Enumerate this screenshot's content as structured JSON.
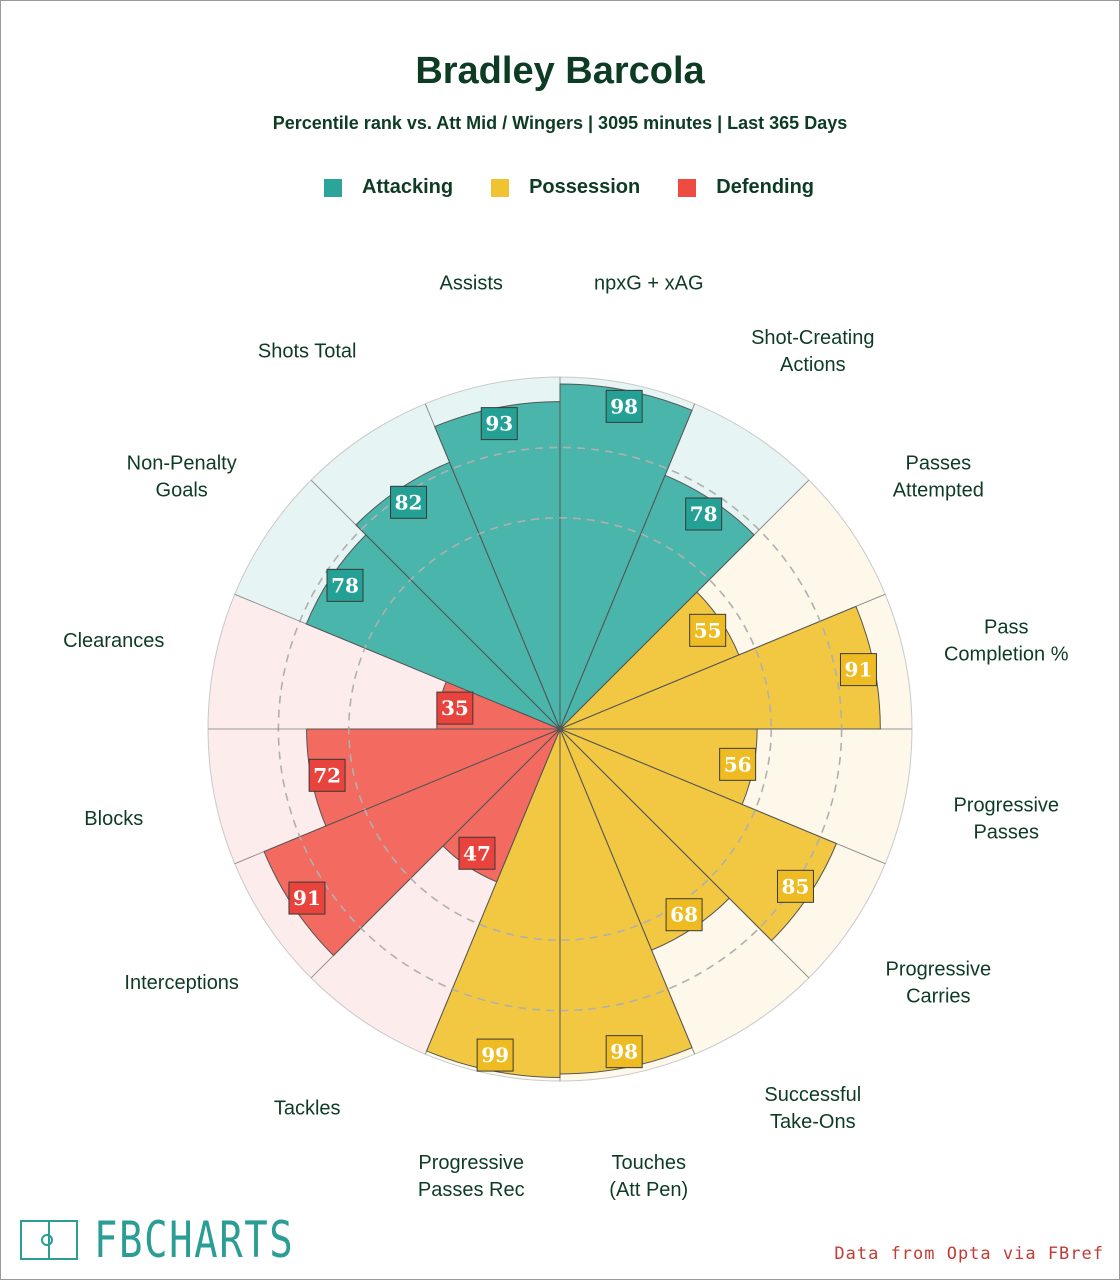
{
  "header": {
    "title": "Bradley Barcola",
    "subtitle": "Percentile rank vs. Att Mid / Wingers | 3095 minutes | Last 365 Days"
  },
  "legend": [
    {
      "label": "Attacking",
      "color": "#2ba59a"
    },
    {
      "label": "Possession",
      "color": "#f0c331"
    },
    {
      "label": "Defending",
      "color": "#ee4c43"
    }
  ],
  "chart_data": {
    "type": "pizza",
    "title": "Bradley Barcola",
    "subtitle": "Percentile rank vs. Att Mid / Wingers | 3095 minutes | Last 365 Days",
    "ylim": [
      0,
      100
    ],
    "categories": [
      "npxG + xAG",
      "Shot-Creating Actions",
      "Passes Attempted",
      "Pass Completion %",
      "Progressive Passes",
      "Progressive Carries",
      "Successful Take-Ons",
      "Touches (Att Pen)",
      "Progressive Passes Rec",
      "Tackles",
      "Interceptions",
      "Blocks",
      "Clearances",
      "Non-Penalty Goals",
      "Shots Total",
      "Assists"
    ],
    "values": [
      98,
      78,
      55,
      91,
      56,
      85,
      68,
      98,
      99,
      47,
      91,
      72,
      35,
      78,
      82,
      93
    ],
    "groups": [
      "Attacking",
      "Attacking",
      "Possession",
      "Possession",
      "Possession",
      "Possession",
      "Possession",
      "Possession",
      "Possession",
      "Defending",
      "Defending",
      "Defending",
      "Defending",
      "Attacking",
      "Attacking",
      "Attacking"
    ],
    "group_colors": {
      "Attacking": {
        "fill": "#4ab5aa",
        "bg": "#e6f4f3",
        "label": "#24a094"
      },
      "Possession": {
        "fill": "#f2c843",
        "bg": "#fdf8e9",
        "label": "#eebc22"
      },
      "Defending": {
        "fill": "#f26a60",
        "bg": "#fdecec",
        "label": "#e8433c"
      }
    }
  },
  "footer": {
    "logo_text": "FBCHARTS",
    "credit": "Data from Opta via FBref"
  }
}
